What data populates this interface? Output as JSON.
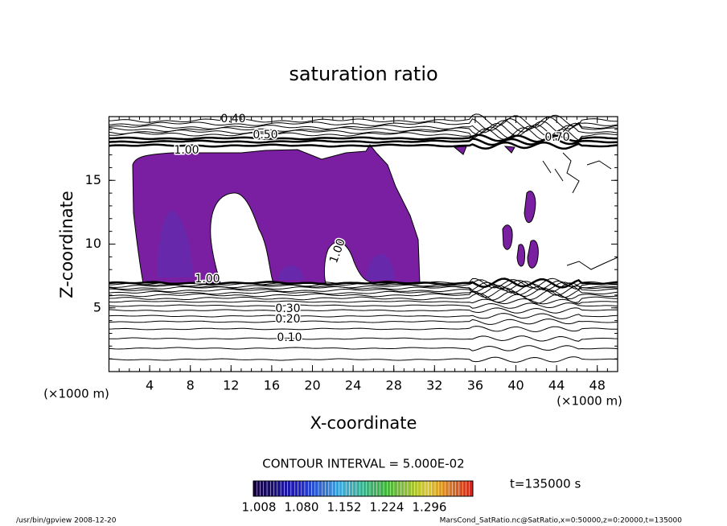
{
  "chart_data": {
    "type": "contour",
    "title": "saturation ratio",
    "x_label": "X-coordinate",
    "y_label": "Z-coordinate",
    "x_unit": "(×1000 m)",
    "y_unit": "(×1000 m)",
    "xlim": [
      0,
      50
    ],
    "ylim": [
      0,
      20
    ],
    "xticks": [
      4,
      8,
      12,
      16,
      20,
      24,
      28,
      32,
      36,
      40,
      44,
      48
    ],
    "yticks": [
      5,
      10,
      15
    ],
    "contour_labels": [
      "0.40",
      "0.50",
      "0.70",
      "1.00",
      "1.00",
      "1.00",
      "0.30",
      "0.20",
      "0.10"
    ],
    "contour_interval_text": "CONTOUR INTERVAL = 5.000E-02",
    "time_text": "t=135000 s",
    "colorbar_ticks": [
      1.008,
      {
        "value": 1.08,
        "label": "1.080"
      },
      1.152,
      1.224,
      1.296
    ],
    "footer_left": "/usr/bin/gpview  2008-12-20",
    "footer_right": "MarsCond_SatRatio.nc@SatRatio,x=0:50000,z=0:20000,t=135000"
  }
}
